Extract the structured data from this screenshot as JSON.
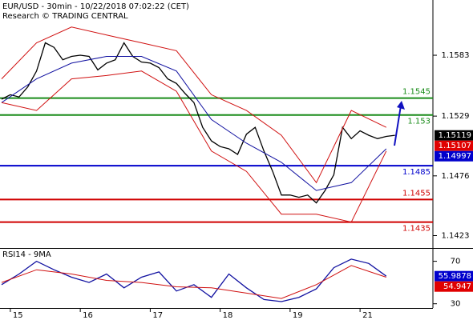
{
  "chart_data": [
    {
      "type": "line",
      "title": "EUR/USD - 30min - 10/22/2018 07:02:22 (CET)",
      "subtitle": "Research © TRADING CENTRAL",
      "xlim": [
        0,
        296
      ],
      "ylim": [
        1.1412,
        1.1632
      ],
      "yticks": [
        1.1423,
        1.1476,
        1.1529,
        1.1583
      ],
      "xticks": [
        {
          "value": 6,
          "label": "15"
        },
        {
          "value": 54,
          "label": "16"
        },
        {
          "value": 102,
          "label": "17"
        },
        {
          "value": 150,
          "label": "18"
        },
        {
          "value": 198,
          "label": "19"
        },
        {
          "value": 246,
          "label": "21"
        }
      ],
      "series": [
        {
          "color": "#000000",
          "x": [
            0,
            6,
            12,
            18,
            24,
            30,
            36,
            42,
            48,
            54,
            60,
            66,
            72,
            78,
            84,
            90,
            96,
            102,
            108,
            114,
            120,
            126,
            132,
            138,
            144,
            150,
            156,
            162,
            168,
            174,
            180,
            186,
            192,
            198,
            204,
            210,
            216,
            222,
            228,
            234,
            240,
            246,
            252,
            258,
            264,
            270
          ],
          "values": [
            1.1544,
            1.1548,
            1.1546,
            1.1555,
            1.1569,
            1.1594,
            1.159,
            1.1579,
            1.1582,
            1.1583,
            1.1582,
            1.157,
            1.1576,
            1.1579,
            1.1594,
            1.1582,
            1.1577,
            1.1576,
            1.1572,
            1.1562,
            1.1558,
            1.1549,
            1.1541,
            1.1519,
            1.1507,
            1.1502,
            1.15,
            1.1495,
            1.1513,
            1.1519,
            1.1498,
            1.148,
            1.1459,
            1.1459,
            1.1457,
            1.1459,
            1.1452,
            1.1463,
            1.1477,
            1.1519,
            1.1509,
            1.1516,
            1.1512,
            1.1509,
            1.1511,
            1.1512
          ]
        },
        {
          "color": "#1010a0",
          "x": [
            0,
            24,
            48,
            72,
            96,
            120,
            144,
            168,
            192,
            216,
            240,
            264
          ],
          "values": [
            1.1541,
            1.1562,
            1.1576,
            1.1582,
            1.1582,
            1.1569,
            1.1526,
            1.1505,
            1.1488,
            1.1463,
            1.147,
            1.15
          ]
        },
        {
          "color": "#d01010",
          "x": [
            0,
            24,
            48,
            72,
            96,
            120,
            144,
            168,
            192,
            216,
            240,
            264
          ],
          "values": [
            1.1562,
            1.1594,
            1.1608,
            1.1601,
            1.1594,
            1.1587,
            1.1548,
            1.1534,
            1.1512,
            1.147,
            1.1534,
            1.1519
          ]
        },
        {
          "color": "#d01010",
          "x": [
            0,
            24,
            48,
            72,
            96,
            120,
            144,
            168,
            192,
            216,
            240,
            264
          ],
          "values": [
            1.1541,
            1.1534,
            1.1562,
            1.1565,
            1.1569,
            1.1551,
            1.1498,
            1.148,
            1.1442,
            1.1442,
            1.1435,
            1.1498
          ]
        }
      ],
      "levels": [
        {
          "value": 1.1545,
          "color": "#1a8c1a"
        },
        {
          "value": 1.153,
          "color": "#1a8c1a"
        },
        {
          "value": 1.1485,
          "color": "#0000cc"
        },
        {
          "value": 1.1455,
          "color": "#d00000"
        },
        {
          "value": 1.1435,
          "color": "#d00000"
        }
      ],
      "markers": [
        {
          "value": 1.15119,
          "color": "#000000"
        },
        {
          "value": 1.15107,
          "color": "#e00000"
        },
        {
          "value": 1.14997,
          "color": "#0000cc"
        }
      ]
    },
    {
      "type": "line",
      "title": "RSI14 - 9MA",
      "xlim": [
        0,
        296
      ],
      "ylim": [
        26,
        81
      ],
      "yticks": [
        30,
        70
      ],
      "series": [
        {
          "color": "#1010a0",
          "x": [
            0,
            12,
            24,
            36,
            48,
            60,
            72,
            84,
            96,
            108,
            120,
            132,
            144,
            156,
            168,
            180,
            192,
            204,
            216,
            228,
            240,
            252,
            264
          ],
          "values": [
            48,
            58,
            70,
            62,
            55,
            50,
            58,
            45,
            55,
            60,
            42,
            48,
            36,
            58,
            45,
            34,
            32,
            36,
            44,
            64,
            72,
            68,
            56
          ]
        },
        {
          "color": "#d01010",
          "x": [
            0,
            24,
            48,
            72,
            96,
            120,
            144,
            168,
            192,
            216,
            240,
            264
          ],
          "values": [
            50,
            62,
            58,
            52,
            50,
            46,
            45,
            40,
            35,
            48,
            66,
            55
          ]
        }
      ],
      "markers": [
        {
          "value": 55.9878,
          "color": "#0000cc"
        },
        {
          "value": 54.947,
          "color": "#e00000"
        }
      ]
    }
  ]
}
